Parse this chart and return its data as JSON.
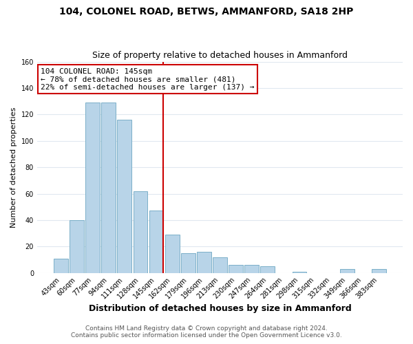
{
  "title": "104, COLONEL ROAD, BETWS, AMMANFORD, SA18 2HP",
  "subtitle": "Size of property relative to detached houses in Ammanford",
  "xlabel": "Distribution of detached houses by size in Ammanford",
  "ylabel": "Number of detached properties",
  "bar_labels": [
    "43sqm",
    "60sqm",
    "77sqm",
    "94sqm",
    "111sqm",
    "128sqm",
    "145sqm",
    "162sqm",
    "179sqm",
    "196sqm",
    "213sqm",
    "230sqm",
    "247sqm",
    "264sqm",
    "281sqm",
    "298sqm",
    "315sqm",
    "332sqm",
    "349sqm",
    "366sqm",
    "383sqm"
  ],
  "bar_heights": [
    11,
    40,
    129,
    129,
    116,
    62,
    47,
    29,
    15,
    16,
    12,
    6,
    6,
    5,
    0,
    1,
    0,
    0,
    3,
    0,
    3
  ],
  "highlight_index": 6,
  "bar_color": "#b8d4e8",
  "bar_edge_color": "#7aafc8",
  "vline_color": "#cc0000",
  "annotation_line1": "104 COLONEL ROAD: 145sqm",
  "annotation_line2": "← 78% of detached houses are smaller (481)",
  "annotation_line3": "22% of semi-detached houses are larger (137) →",
  "annotation_box_edgecolor": "#cc0000",
  "ylim": [
    0,
    160
  ],
  "yticks": [
    0,
    20,
    40,
    60,
    80,
    100,
    120,
    140,
    160
  ],
  "footer1": "Contains HM Land Registry data © Crown copyright and database right 2024.",
  "footer2": "Contains public sector information licensed under the Open Government Licence v3.0.",
  "background_color": "#ffffff",
  "plot_bg_color": "#ffffff",
  "grid_color": "#e0e8f0",
  "title_fontsize": 10,
  "subtitle_fontsize": 9,
  "xlabel_fontsize": 9,
  "ylabel_fontsize": 8,
  "tick_fontsize": 7,
  "annotation_fontsize": 8,
  "footer_fontsize": 6.5
}
